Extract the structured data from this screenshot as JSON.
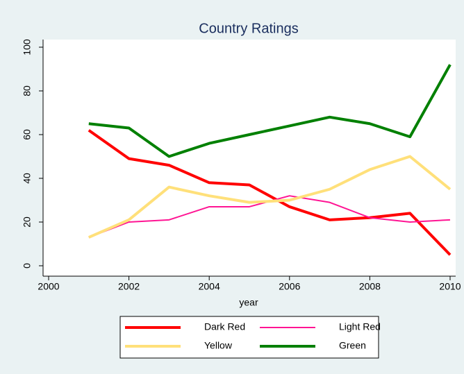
{
  "chart_data": {
    "type": "line",
    "title": "Country Ratings",
    "x_label": "year",
    "x": [
      2001,
      2002,
      2003,
      2004,
      2005,
      2006,
      2007,
      2008,
      2009,
      2010
    ],
    "series": [
      {
        "name": "Dark Red",
        "color": "#ff0000",
        "width": 4,
        "values": [
          62,
          49,
          46,
          38,
          37,
          27,
          21,
          22,
          24,
          5
        ]
      },
      {
        "name": "Light Red",
        "color": "#ff1493",
        "width": 2,
        "values": [
          13,
          20,
          21,
          27,
          27,
          32,
          29,
          22,
          20,
          21
        ]
      },
      {
        "name": "Yellow",
        "color": "#ffe07a",
        "width": 4,
        "values": [
          13,
          21,
          36,
          32,
          29,
          30,
          35,
          44,
          50,
          35
        ]
      },
      {
        "name": "Green",
        "color": "#008000",
        "width": 4,
        "values": [
          65,
          63,
          50,
          56,
          60,
          64,
          68,
          65,
          59,
          92
        ]
      }
    ],
    "xlim": [
      2000,
      2010
    ],
    "xticks": [
      2000,
      2002,
      2004,
      2006,
      2008,
      2010
    ],
    "ylim": [
      0,
      100
    ],
    "yticks": [
      0,
      20,
      40,
      60,
      80,
      100
    ],
    "grid": false,
    "legend": "bottom"
  }
}
